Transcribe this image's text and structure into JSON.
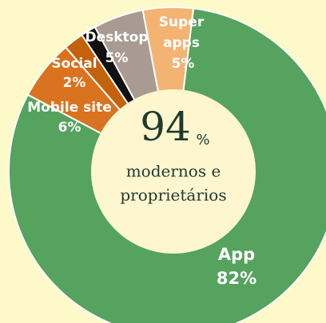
{
  "chart_data": {
    "type": "donut",
    "categories": [
      "App",
      "Mobile site",
      "Social",
      null,
      "Desktop",
      "Super apps"
    ],
    "values": [
      82,
      6,
      2,
      1.5,
      5,
      5
    ],
    "value_labels": [
      "82%",
      "6%",
      "2%",
      null,
      "5%",
      "5%"
    ],
    "colors": [
      "#55a35e",
      "#d9731f",
      "#c4610c",
      "#111111",
      "#a99b91",
      "#f2b373"
    ],
    "center_value": 94,
    "center_unit": "%",
    "center_text": [
      "modernos e",
      "proprietários"
    ]
  }
}
